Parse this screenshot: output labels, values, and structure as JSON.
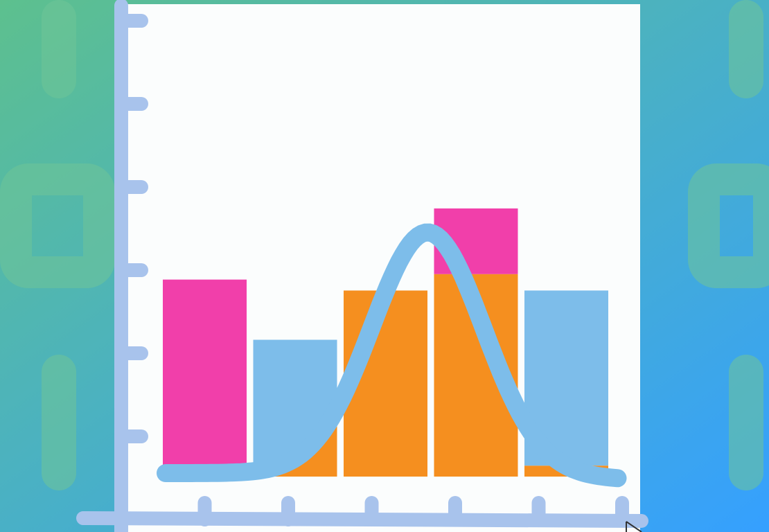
{
  "colors": {
    "bg_top_left": "#5DC08E",
    "bg_bottom_right": "#35A0FF",
    "panel": "#FBFDFD",
    "axis": "#A8C3EC",
    "pink": "#F13FAA",
    "orange": "#F58F1F",
    "light_blue": "#7DBDEA",
    "curve": "#7DBDEA",
    "deco": "#6FC497"
  },
  "decorations": [
    "pill-shape",
    "square-outline-shape",
    "pill-shape",
    "pill-shape",
    "square-outline-shape",
    "pill-shape"
  ],
  "chart_data": {
    "type": "bar",
    "title": "",
    "xlabel": "",
    "ylabel": "",
    "ylim": [
      0,
      6
    ],
    "y_ticks": [
      1,
      2,
      3,
      4,
      5,
      6
    ],
    "x_ticks": [
      1,
      2,
      3,
      4,
      5,
      6
    ],
    "grid": false,
    "legend": "none",
    "bars": [
      {
        "category": "1",
        "total": 3.6,
        "segments": [
          {
            "value": 0.2,
            "color_key": "orange"
          },
          {
            "value": 3.4,
            "color_key": "pink"
          }
        ]
      },
      {
        "category": "2",
        "total": 2.5,
        "segments": [
          {
            "value": 2.5,
            "color_key": "orange"
          }
        ],
        "overlay": {
          "top": 2.5,
          "color_key": "light_blue"
        }
      },
      {
        "category": "3",
        "total": 3.4,
        "segments": [
          {
            "value": 3.4,
            "color_key": "orange"
          }
        ]
      },
      {
        "category": "4",
        "total": 4.9,
        "segments": [
          {
            "value": 3.7,
            "color_key": "orange"
          },
          {
            "value": 1.2,
            "color_key": "pink"
          }
        ]
      },
      {
        "category": "5",
        "total": 3.4,
        "segments": [
          {
            "value": 0.2,
            "color_key": "orange"
          },
          {
            "value": 3.2,
            "color_key": "light_blue"
          }
        ]
      }
    ],
    "curve": {
      "type": "normal-distribution",
      "peak_x": 3.4,
      "peak_y": 4.4,
      "baseline_y": 0.0,
      "x_range": [
        0.5,
        5.5
      ]
    }
  }
}
